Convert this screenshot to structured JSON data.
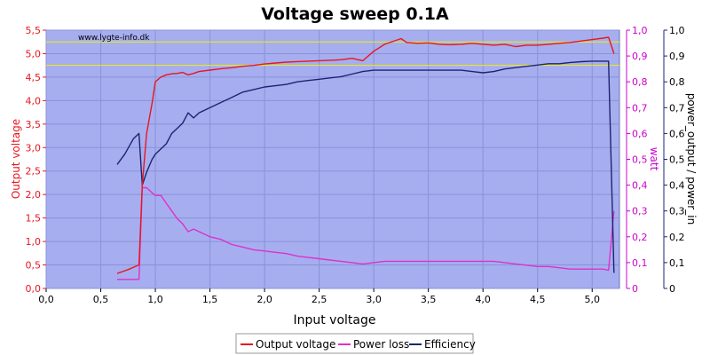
{
  "chart_data": {
    "type": "line",
    "title": "Voltage sweep 0.1A",
    "xlabel": "Input voltage",
    "ylabel_left": "Output voltage",
    "ylabel_right1": "watt",
    "ylabel_right2": "power_output / power_in",
    "watermark": "www.lygte-info.dk",
    "xlim": [
      0,
      5.25
    ],
    "ylim_left": [
      0,
      5.5
    ],
    "ylim_right": [
      0,
      1
    ],
    "x_ticks": [
      "0,0",
      "0,5",
      "1,0",
      "1,5",
      "2,0",
      "2,5",
      "3,0",
      "3,5",
      "4,0",
      "4,5",
      "5,0"
    ],
    "y_left_ticks": [
      "0,0",
      "0,5",
      "1,0",
      "1,5",
      "2,0",
      "2,5",
      "3,0",
      "3,5",
      "4,0",
      "4,5",
      "5,0",
      "5,5"
    ],
    "y_right_ticks": [
      "0",
      "0,1",
      "0,2",
      "0,3",
      "0,4",
      "0,5",
      "0,6",
      "0,7",
      "0,8",
      "0,9",
      "1,0"
    ],
    "reference_lines_left": [
      5.25,
      4.75
    ],
    "grid": true,
    "legend_position": "bottom-center",
    "colors": {
      "background": "#a6aef0",
      "output_voltage": "#e8161f",
      "power_loss": "#e030c8",
      "efficiency": "#1c2470",
      "reference_line": "#f0f000",
      "left_axis": "#e8161f",
      "right_axis_watt": "#cc00cc",
      "right_axis_eff": "#1c2470"
    },
    "series": [
      {
        "name": "Output voltage",
        "axis": "left",
        "x": [
          0.65,
          0.75,
          0.85,
          0.88,
          0.92,
          0.97,
          1.0,
          1.05,
          1.1,
          1.15,
          1.2,
          1.25,
          1.3,
          1.35,
          1.4,
          1.5,
          1.6,
          1.7,
          1.8,
          1.9,
          2.0,
          2.1,
          2.2,
          2.3,
          2.4,
          2.5,
          2.6,
          2.7,
          2.8,
          2.9,
          3.0,
          3.1,
          3.2,
          3.25,
          3.3,
          3.4,
          3.5,
          3.6,
          3.7,
          3.8,
          3.9,
          4.0,
          4.1,
          4.2,
          4.3,
          4.4,
          4.5,
          4.6,
          4.7,
          4.8,
          4.9,
          5.0,
          5.1,
          5.15,
          5.2
        ],
        "values": [
          0.32,
          0.4,
          0.5,
          2.2,
          3.3,
          3.95,
          4.4,
          4.5,
          4.55,
          4.57,
          4.58,
          4.6,
          4.55,
          4.58,
          4.62,
          4.65,
          4.68,
          4.7,
          4.73,
          4.75,
          4.78,
          4.8,
          4.82,
          4.83,
          4.84,
          4.85,
          4.86,
          4.87,
          4.9,
          4.85,
          5.05,
          5.2,
          5.28,
          5.32,
          5.24,
          5.22,
          5.23,
          5.2,
          5.19,
          5.2,
          5.22,
          5.2,
          5.18,
          5.2,
          5.15,
          5.18,
          5.18,
          5.2,
          5.22,
          5.24,
          5.27,
          5.3,
          5.33,
          5.35,
          5.0
        ]
      },
      {
        "name": "Power loss",
        "axis": "right",
        "x": [
          0.65,
          0.75,
          0.85,
          0.88,
          0.92,
          0.97,
          1.0,
          1.05,
          1.1,
          1.15,
          1.2,
          1.25,
          1.3,
          1.35,
          1.4,
          1.5,
          1.6,
          1.7,
          1.8,
          1.9,
          2.0,
          2.1,
          2.2,
          2.3,
          2.4,
          2.5,
          2.6,
          2.7,
          2.8,
          2.9,
          3.0,
          3.1,
          3.2,
          3.3,
          3.4,
          3.5,
          3.6,
          3.7,
          3.8,
          3.9,
          4.0,
          4.1,
          4.2,
          4.3,
          4.4,
          4.5,
          4.6,
          4.7,
          4.8,
          4.9,
          5.0,
          5.1,
          5.15,
          5.2
        ],
        "values": [
          0.035,
          0.035,
          0.035,
          0.39,
          0.39,
          0.37,
          0.36,
          0.36,
          0.33,
          0.3,
          0.27,
          0.25,
          0.22,
          0.23,
          0.22,
          0.2,
          0.19,
          0.17,
          0.16,
          0.15,
          0.145,
          0.14,
          0.135,
          0.125,
          0.12,
          0.115,
          0.11,
          0.105,
          0.1,
          0.095,
          0.1,
          0.105,
          0.105,
          0.105,
          0.105,
          0.105,
          0.105,
          0.105,
          0.105,
          0.105,
          0.105,
          0.105,
          0.1,
          0.095,
          0.09,
          0.085,
          0.085,
          0.08,
          0.075,
          0.075,
          0.075,
          0.075,
          0.07,
          0.3
        ]
      },
      {
        "name": "Efficiency",
        "axis": "right",
        "x": [
          0.65,
          0.72,
          0.8,
          0.85,
          0.88,
          0.92,
          0.97,
          1.0,
          1.05,
          1.1,
          1.15,
          1.2,
          1.25,
          1.3,
          1.35,
          1.4,
          1.45,
          1.5,
          1.6,
          1.7,
          1.8,
          1.9,
          2.0,
          2.1,
          2.2,
          2.3,
          2.4,
          2.5,
          2.6,
          2.7,
          2.8,
          2.9,
          3.0,
          3.1,
          3.2,
          3.3,
          3.4,
          3.5,
          3.6,
          3.7,
          3.8,
          3.9,
          4.0,
          4.1,
          4.2,
          4.3,
          4.4,
          4.5,
          4.6,
          4.7,
          4.8,
          4.9,
          5.0,
          5.1,
          5.15,
          5.2
        ],
        "values": [
          0.48,
          0.52,
          0.58,
          0.6,
          0.4,
          0.45,
          0.5,
          0.52,
          0.54,
          0.56,
          0.6,
          0.62,
          0.64,
          0.68,
          0.66,
          0.68,
          0.69,
          0.7,
          0.72,
          0.74,
          0.76,
          0.77,
          0.78,
          0.785,
          0.79,
          0.8,
          0.805,
          0.81,
          0.815,
          0.82,
          0.83,
          0.84,
          0.845,
          0.845,
          0.845,
          0.845,
          0.845,
          0.845,
          0.845,
          0.845,
          0.845,
          0.84,
          0.835,
          0.84,
          0.85,
          0.855,
          0.86,
          0.865,
          0.87,
          0.87,
          0.875,
          0.878,
          0.88,
          0.88,
          0.88,
          0.06
        ]
      }
    ]
  }
}
